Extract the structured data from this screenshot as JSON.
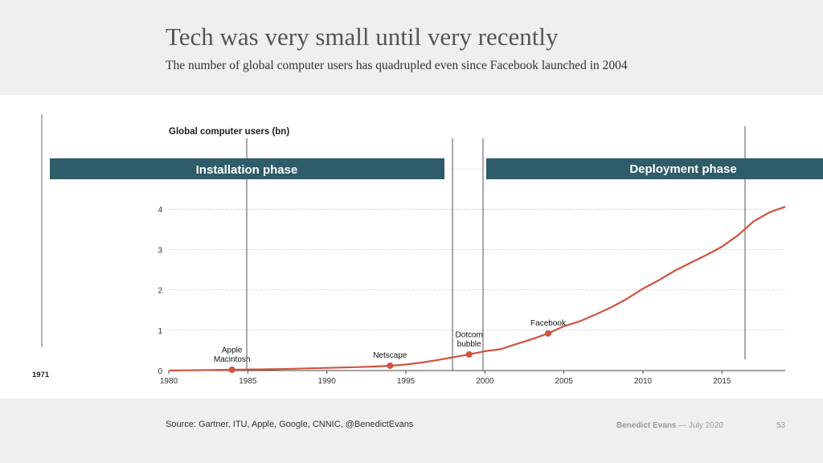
{
  "header": {
    "title": "Tech was very small until very recently",
    "subtitle": "The number of global computer users has quadrupled even since Facebook launched in 2004"
  },
  "footer": {
    "source": "Source: Gartner, ITU, Apple, Google, CNNIC, @BenedictEvans",
    "author": "Benedict Evans",
    "separator": "—",
    "date": "July 2020",
    "page": "53"
  },
  "colors": {
    "line": "#d0533f",
    "phase_band": "#2e5c68",
    "header_bg": "#efefef"
  },
  "chart_data": {
    "type": "line",
    "title": "Global computer users (bn)",
    "x_start_label": "1971",
    "xlim": [
      1980,
      2019
    ],
    "ylim": [
      0,
      4.5
    ],
    "x_ticks": [
      "1980",
      "1985",
      "1990",
      "1995",
      "2000",
      "2005",
      "2010",
      "2015"
    ],
    "y_ticks": [
      "0",
      "1",
      "2",
      "3",
      "4"
    ],
    "grid": true,
    "series": [
      {
        "x": [
          1980,
          1981,
          1982,
          1983,
          1984,
          1985,
          1986,
          1987,
          1988,
          1989,
          1990,
          1991,
          1992,
          1993,
          1994,
          1995,
          1996,
          1997,
          1998,
          1999,
          2000,
          2001,
          2002,
          2003,
          2004,
          2005,
          2006,
          2007,
          2008,
          2009,
          2010,
          2011,
          2012,
          2013,
          2014,
          2015,
          2016,
          2017,
          2018,
          2019
        ],
        "y": [
          0.0,
          0.005,
          0.01,
          0.015,
          0.02,
          0.025,
          0.03,
          0.035,
          0.045,
          0.055,
          0.065,
          0.075,
          0.085,
          0.1,
          0.12,
          0.15,
          0.2,
          0.26,
          0.33,
          0.4,
          0.48,
          0.53,
          0.66,
          0.78,
          0.92,
          1.1,
          1.22,
          1.39,
          1.57,
          1.78,
          2.03,
          2.24,
          2.47,
          2.67,
          2.86,
          3.07,
          3.35,
          3.7,
          3.92,
          4.06
        ]
      }
    ],
    "annotations": [
      {
        "label": "Apple Macintosh",
        "lines": [
          "Apple",
          "Macintosh"
        ],
        "x": 1984,
        "y": 0.02
      },
      {
        "label": "Netscape",
        "lines": [
          "Netscape"
        ],
        "x": 1994,
        "y": 0.12
      },
      {
        "label": "Dotcom bubble",
        "lines": [
          "Dotcom",
          "bubble"
        ],
        "x": 1999,
        "y": 0.4
      },
      {
        "label": "Facebook",
        "lines": [
          "Facebook"
        ],
        "x": 2004,
        "y": 0.92
      }
    ],
    "phases": [
      {
        "label": "Installation phase"
      },
      {
        "label": "Deployment phase"
      }
    ]
  }
}
